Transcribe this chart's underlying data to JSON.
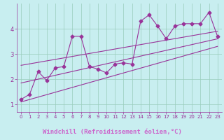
{
  "xlabel": "Windchill (Refroidissement éolien,°C)",
  "bg_color": "#c8eef0",
  "plot_bg_color": "#c8eef0",
  "line_color": "#993399",
  "grid_color": "#99ccbb",
  "xlabel_bg_color": "#330066",
  "xlabel_text_color": "#cc66cc",
  "x_data": [
    0,
    1,
    2,
    3,
    4,
    5,
    6,
    7,
    8,
    9,
    10,
    11,
    12,
    13,
    14,
    15,
    16,
    17,
    18,
    19,
    20,
    21,
    22,
    23
  ],
  "y_data": [
    1.2,
    1.4,
    2.3,
    1.95,
    2.45,
    2.5,
    3.7,
    3.7,
    2.5,
    2.4,
    2.25,
    2.6,
    2.65,
    2.6,
    4.3,
    4.55,
    4.1,
    3.6,
    4.1,
    4.2,
    4.2,
    4.2,
    4.65,
    3.7
  ],
  "reg_line_upper": [
    [
      0,
      2.55
    ],
    [
      23,
      3.9
    ]
  ],
  "reg_line_lower": [
    [
      0,
      1.1
    ],
    [
      23,
      3.3
    ]
  ],
  "reg_line_mid": [
    [
      0,
      1.85
    ],
    [
      23,
      3.6
    ]
  ],
  "xlim": [
    -0.5,
    23.5
  ],
  "ylim": [
    0.7,
    5.0
  ],
  "yticks": [
    1,
    2,
    3,
    4
  ],
  "xticks": [
    0,
    1,
    2,
    3,
    4,
    5,
    6,
    7,
    8,
    9,
    10,
    11,
    12,
    13,
    14,
    15,
    16,
    17,
    18,
    19,
    20,
    21,
    22,
    23
  ],
  "marker": "D",
  "markersize": 2.5,
  "linewidth": 0.8,
  "tick_fontsize": 5.0,
  "ytick_fontsize": 6.0,
  "xlabel_fontsize": 6.5
}
